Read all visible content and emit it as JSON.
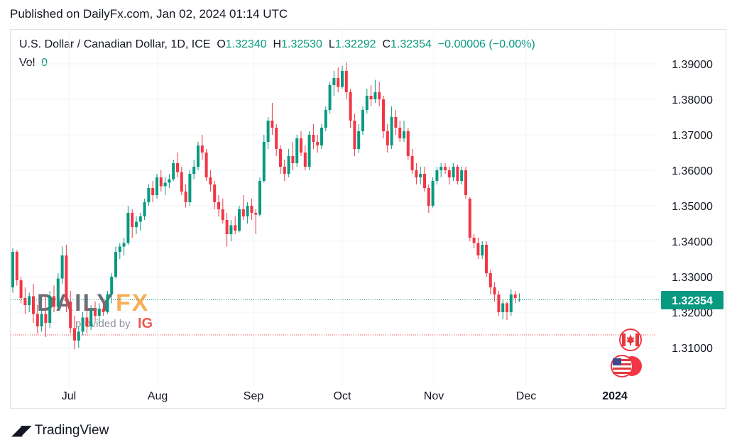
{
  "header": {
    "published": "Published on DailyFx.com, Jan 02, 2024 01:14 UTC"
  },
  "legend": {
    "symbol": "U.S. Dollar / Canadian Dollar, 1D, ICE",
    "open_label": "O",
    "open": "1.32340",
    "high_label": "H",
    "high": "1.32530",
    "low_label": "L",
    "low": "1.32292",
    "close_label": "C",
    "close": "1.32354",
    "change": "−0.00006 (−0.00%)",
    "vol_label": "Vol",
    "vol": "0"
  },
  "watermark": {
    "brand_dark": "DAILY",
    "brand_accent": "FX",
    "provided": "provided by",
    "ig": "IG"
  },
  "footer": {
    "brand": "TradingView"
  },
  "colors": {
    "up": "#089981",
    "down": "#f23645",
    "grid": "#f0f3fa",
    "price_label_bg": "#089981"
  },
  "chart_data": {
    "type": "candlestick",
    "title": "U.S. Dollar / Canadian Dollar, 1D, ICE",
    "x_labels": [
      "Jul",
      "Aug",
      "Sep",
      "Oct",
      "Nov",
      "Dec",
      "2024"
    ],
    "y_ticks": [
      "1.39000",
      "1.38000",
      "1.37000",
      "1.36000",
      "1.35000",
      "1.34000",
      "1.33000",
      "1.32000",
      "1.31000"
    ],
    "ylim": [
      1.305,
      1.392
    ],
    "last_price": 1.32354,
    "last_price_label": "1.32354",
    "reference_line": 1.3136,
    "grid": true,
    "candles": [
      [
        1.327,
        1.338,
        1.3255,
        1.337
      ],
      [
        1.337,
        1.3375,
        1.3275,
        1.329
      ],
      [
        1.329,
        1.33,
        1.3225,
        1.324
      ],
      [
        1.324,
        1.327,
        1.3195,
        1.322
      ],
      [
        1.322,
        1.3255,
        1.32,
        1.3245
      ],
      [
        1.3245,
        1.328,
        1.317,
        1.3195
      ],
      [
        1.3195,
        1.322,
        1.314,
        1.316
      ],
      [
        1.316,
        1.321,
        1.3145,
        1.3195
      ],
      [
        1.3195,
        1.325,
        1.313,
        1.317
      ],
      [
        1.317,
        1.326,
        1.3155,
        1.3245
      ],
      [
        1.3245,
        1.3275,
        1.32,
        1.3215
      ],
      [
        1.3215,
        1.331,
        1.3205,
        1.3295
      ],
      [
        1.3295,
        1.3385,
        1.328,
        1.336
      ],
      [
        1.336,
        1.339,
        1.32,
        1.323
      ],
      [
        1.323,
        1.326,
        1.314,
        1.3155
      ],
      [
        1.3155,
        1.319,
        1.3095,
        1.312
      ],
      [
        1.312,
        1.316,
        1.31,
        1.3145
      ],
      [
        1.3145,
        1.32,
        1.3135,
        1.3185
      ],
      [
        1.3185,
        1.3215,
        1.314,
        1.316
      ],
      [
        1.316,
        1.322,
        1.315,
        1.3205
      ],
      [
        1.3205,
        1.323,
        1.3175,
        1.319
      ],
      [
        1.319,
        1.3225,
        1.3165,
        1.321
      ],
      [
        1.321,
        1.3235,
        1.319,
        1.32
      ],
      [
        1.32,
        1.326,
        1.3195,
        1.325
      ],
      [
        1.325,
        1.331,
        1.3225,
        1.33
      ],
      [
        1.33,
        1.3385,
        1.3295,
        1.337
      ],
      [
        1.337,
        1.3395,
        1.335,
        1.3385
      ],
      [
        1.3385,
        1.341,
        1.336,
        1.3395
      ],
      [
        1.3395,
        1.35,
        1.339,
        1.348
      ],
      [
        1.348,
        1.349,
        1.341,
        1.344
      ],
      [
        1.344,
        1.347,
        1.342,
        1.3455
      ],
      [
        1.3455,
        1.348,
        1.343,
        1.347
      ],
      [
        1.347,
        1.352,
        1.346,
        1.351
      ],
      [
        1.351,
        1.356,
        1.35,
        1.355
      ],
      [
        1.355,
        1.357,
        1.351,
        1.353
      ],
      [
        1.353,
        1.359,
        1.352,
        1.358
      ],
      [
        1.358,
        1.36,
        1.354,
        1.3555
      ],
      [
        1.3555,
        1.358,
        1.353,
        1.3565
      ],
      [
        1.3565,
        1.359,
        1.355,
        1.3575
      ],
      [
        1.3575,
        1.363,
        1.357,
        1.362
      ],
      [
        1.362,
        1.365,
        1.358,
        1.3595
      ],
      [
        1.3595,
        1.361,
        1.353,
        1.354
      ],
      [
        1.354,
        1.356,
        1.3495,
        1.351
      ],
      [
        1.351,
        1.36,
        1.35,
        1.359
      ],
      [
        1.359,
        1.363,
        1.3575,
        1.361
      ],
      [
        1.361,
        1.368,
        1.36,
        1.367
      ],
      [
        1.367,
        1.37,
        1.363,
        1.365
      ],
      [
        1.365,
        1.366,
        1.357,
        1.358
      ],
      [
        1.358,
        1.36,
        1.354,
        1.356
      ],
      [
        1.356,
        1.357,
        1.349,
        1.351
      ],
      [
        1.351,
        1.353,
        1.347,
        1.349
      ],
      [
        1.349,
        1.352,
        1.345,
        1.346
      ],
      [
        1.346,
        1.348,
        1.3385,
        1.342
      ],
      [
        1.342,
        1.346,
        1.34,
        1.3445
      ],
      [
        1.3445,
        1.347,
        1.342,
        1.343
      ],
      [
        1.343,
        1.35,
        1.3425,
        1.349
      ],
      [
        1.349,
        1.353,
        1.346,
        1.347
      ],
      [
        1.347,
        1.351,
        1.345,
        1.35
      ],
      [
        1.35,
        1.352,
        1.346,
        1.348
      ],
      [
        1.348,
        1.349,
        1.342,
        1.3475
      ],
      [
        1.3475,
        1.358,
        1.347,
        1.357
      ],
      [
        1.357,
        1.37,
        1.3565,
        1.368
      ],
      [
        1.368,
        1.375,
        1.366,
        1.374
      ],
      [
        1.374,
        1.379,
        1.37,
        1.372
      ],
      [
        1.372,
        1.373,
        1.364,
        1.366
      ],
      [
        1.366,
        1.367,
        1.359,
        1.361
      ],
      [
        1.361,
        1.363,
        1.357,
        1.359
      ],
      [
        1.359,
        1.366,
        1.358,
        1.364
      ],
      [
        1.364,
        1.368,
        1.36,
        1.362
      ],
      [
        1.362,
        1.37,
        1.361,
        1.369
      ],
      [
        1.369,
        1.371,
        1.364,
        1.365
      ],
      [
        1.365,
        1.367,
        1.36,
        1.361
      ],
      [
        1.361,
        1.371,
        1.36,
        1.37
      ],
      [
        1.37,
        1.373,
        1.366,
        1.368
      ],
      [
        1.368,
        1.37,
        1.365,
        1.367
      ],
      [
        1.367,
        1.373,
        1.366,
        1.372
      ],
      [
        1.372,
        1.378,
        1.371,
        1.377
      ],
      [
        1.377,
        1.385,
        1.376,
        1.384
      ],
      [
        1.384,
        1.388,
        1.381,
        1.386
      ],
      [
        1.386,
        1.389,
        1.382,
        1.3835
      ],
      [
        1.3835,
        1.3895,
        1.383,
        1.388
      ],
      [
        1.388,
        1.3905,
        1.38,
        1.382
      ],
      [
        1.382,
        1.383,
        1.372,
        1.374
      ],
      [
        1.374,
        1.376,
        1.364,
        1.366
      ],
      [
        1.366,
        1.373,
        1.365,
        1.371
      ],
      [
        1.371,
        1.378,
        1.37,
        1.377
      ],
      [
        1.377,
        1.383,
        1.376,
        1.381
      ],
      [
        1.381,
        1.384,
        1.378,
        1.38
      ],
      [
        1.38,
        1.3855,
        1.379,
        1.382
      ],
      [
        1.382,
        1.385,
        1.378,
        1.38
      ],
      [
        1.38,
        1.381,
        1.369,
        1.371
      ],
      [
        1.371,
        1.373,
        1.365,
        1.367
      ],
      [
        1.367,
        1.378,
        1.366,
        1.375
      ],
      [
        1.375,
        1.377,
        1.37,
        1.372
      ],
      [
        1.372,
        1.374,
        1.368,
        1.369
      ],
      [
        1.369,
        1.374,
        1.368,
        1.371
      ],
      [
        1.371,
        1.372,
        1.363,
        1.364
      ],
      [
        1.364,
        1.366,
        1.359,
        1.36
      ],
      [
        1.36,
        1.362,
        1.356,
        1.358
      ],
      [
        1.358,
        1.361,
        1.356,
        1.359
      ],
      [
        1.359,
        1.361,
        1.354,
        1.355
      ],
      [
        1.355,
        1.356,
        1.348,
        1.35
      ],
      [
        1.35,
        1.358,
        1.3495,
        1.357
      ],
      [
        1.357,
        1.361,
        1.356,
        1.36
      ],
      [
        1.36,
        1.362,
        1.358,
        1.361
      ],
      [
        1.361,
        1.362,
        1.359,
        1.36
      ],
      [
        1.36,
        1.361,
        1.356,
        1.358
      ],
      [
        1.358,
        1.362,
        1.357,
        1.361
      ],
      [
        1.361,
        1.3615,
        1.356,
        1.357
      ],
      [
        1.357,
        1.361,
        1.356,
        1.36
      ],
      [
        1.36,
        1.361,
        1.352,
        1.353
      ],
      [
        1.352,
        1.3525,
        1.34,
        1.341
      ],
      [
        1.341,
        1.342,
        1.338,
        1.3395
      ],
      [
        1.3395,
        1.341,
        1.335,
        1.336
      ],
      [
        1.336,
        1.34,
        1.335,
        1.339
      ],
      [
        1.339,
        1.34,
        1.33,
        1.331
      ],
      [
        1.331,
        1.332,
        1.325,
        1.327
      ],
      [
        1.327,
        1.3285,
        1.323,
        1.325
      ],
      [
        1.325,
        1.326,
        1.319,
        1.32
      ],
      [
        1.32,
        1.3235,
        1.318,
        1.3225
      ],
      [
        1.3225,
        1.323,
        1.3178,
        1.32
      ],
      [
        1.32,
        1.3265,
        1.319,
        1.325
      ],
      [
        1.325,
        1.326,
        1.3225,
        1.324
      ],
      [
        1.3234,
        1.3253,
        1.3229,
        1.32354
      ]
    ]
  }
}
